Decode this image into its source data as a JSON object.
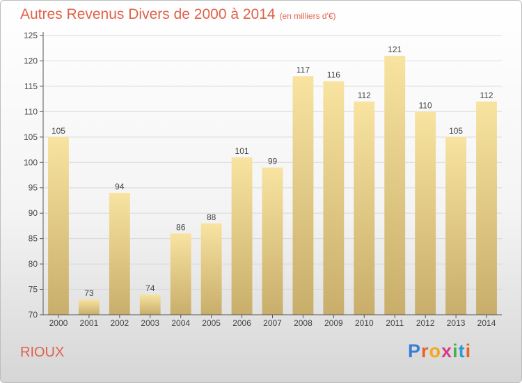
{
  "header": {
    "title": "Autres Revenus Divers de 2000 à 2014",
    "unit": "(en milliers d'€)"
  },
  "footer": {
    "commune": "RIOUX",
    "brand_letters": [
      "P",
      "r",
      "o",
      "x",
      "i",
      "t",
      "i"
    ],
    "brand_colors": [
      "#3a7fd5",
      "#e6632a",
      "#f2a81d",
      "#d93a8a",
      "#47b04b",
      "#2f9bd6",
      "#e6632a"
    ]
  },
  "chart_data": {
    "type": "bar",
    "categories": [
      "2000",
      "2001",
      "2002",
      "2003",
      "2004",
      "2005",
      "2006",
      "2007",
      "2008",
      "2009",
      "2010",
      "2011",
      "2012",
      "2013",
      "2014"
    ],
    "values": [
      105,
      73,
      94,
      74,
      86,
      88,
      101,
      99,
      117,
      116,
      112,
      121,
      110,
      105,
      112
    ],
    "value_labels": [
      "105",
      "73",
      "94",
      "74",
      "86",
      "88",
      "101",
      "99",
      "117",
      "116",
      "112",
      "121",
      "110",
      "105",
      "112"
    ],
    "ylim": [
      70,
      125
    ],
    "yticks": [
      70,
      75,
      80,
      85,
      90,
      95,
      100,
      105,
      110,
      115,
      120,
      125
    ],
    "ytick_labels": [
      "70",
      "75",
      "80",
      "85",
      "90",
      "95",
      "100",
      "105",
      "110",
      "115",
      "120",
      "125"
    ],
    "grid": true,
    "colors": {
      "bar_light": "#f8e3a0",
      "bar_dark": "#c8ae6a",
      "grid": "#d9d9d9",
      "axis": "#555555",
      "text": "#444444"
    }
  }
}
